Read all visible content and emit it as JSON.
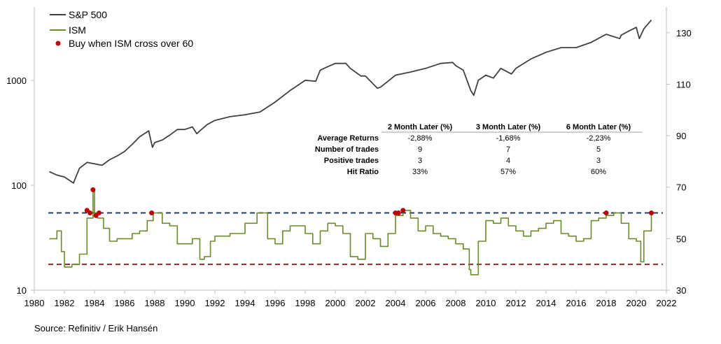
{
  "chart_data": {
    "type": "line",
    "title": "",
    "source": "Source: Refinitiv / Erik Hansén",
    "legend": {
      "placement": "top-left",
      "entries": [
        {
          "label": "S&P 500",
          "color": "#404040"
        },
        {
          "label": "ISM",
          "color": "#6b8b2a"
        },
        {
          "label": "Buy when ISM cross over 60",
          "color": "#c00000"
        }
      ]
    },
    "x_axis": {
      "range": [
        1980,
        2022
      ],
      "ticks": [
        "1980",
        "1982",
        "1984",
        "1986",
        "1988",
        "1990",
        "1992",
        "1994",
        "1996",
        "1998",
        "2000",
        "2002",
        "2004",
        "2006",
        "2008",
        "2010",
        "2012",
        "2014",
        "2016",
        "2018",
        "2020",
        "2022"
      ]
    },
    "y_left": {
      "scale": "log",
      "range": [
        10,
        5000
      ],
      "ticks": [
        "10",
        "100",
        "1000"
      ]
    },
    "y_right": {
      "scale": "linear",
      "range": [
        30,
        140
      ],
      "ticks": [
        "30",
        "50",
        "70",
        "90",
        "110",
        "130"
      ]
    },
    "reference_lines": [
      {
        "value": 60,
        "axis": "right",
        "color": "#1f3864",
        "style": "dashed"
      },
      {
        "value": 40,
        "axis": "right",
        "color": "#8b2a2a",
        "style": "dashed"
      }
    ],
    "series": [
      {
        "name": "S&P 500",
        "axis": "left",
        "x": [
          1981.0,
          1981.5,
          1982.0,
          1982.6,
          1983.0,
          1983.5,
          1984.0,
          1984.5,
          1985.0,
          1985.5,
          1986.0,
          1986.5,
          1987.0,
          1987.6,
          1987.85,
          1988.0,
          1988.5,
          1989.0,
          1989.5,
          1990.0,
          1990.5,
          1990.8,
          1991.0,
          1991.5,
          1992.0,
          1993.0,
          1994.0,
          1995.0,
          1996.0,
          1997.0,
          1998.0,
          1998.7,
          1999.0,
          1999.5,
          2000.0,
          2000.7,
          2001.0,
          2001.7,
          2002.0,
          2002.8,
          2003.0,
          2003.5,
          2004.0,
          2005.0,
          2006.0,
          2007.0,
          2007.8,
          2008.0,
          2008.5,
          2009.0,
          2009.2,
          2009.5,
          2010.0,
          2010.5,
          2011.0,
          2011.7,
          2012.0,
          2013.0,
          2014.0,
          2015.0,
          2016.0,
          2017.0,
          2018.0,
          2018.9,
          2019.0,
          2019.5,
          2020.0,
          2020.2,
          2020.5,
          2021.0
        ],
        "values": [
          135,
          125,
          120,
          105,
          145,
          165,
          160,
          155,
          175,
          190,
          210,
          245,
          290,
          330,
          230,
          255,
          270,
          300,
          340,
          340,
          360,
          310,
          330,
          380,
          415,
          450,
          470,
          500,
          620,
          800,
          1000,
          980,
          1250,
          1350,
          1450,
          1450,
          1300,
          1100,
          1100,
          840,
          860,
          980,
          1120,
          1200,
          1300,
          1450,
          1480,
          1380,
          1250,
          800,
          720,
          1000,
          1120,
          1050,
          1300,
          1150,
          1300,
          1600,
          1850,
          2050,
          2050,
          2300,
          2750,
          2500,
          2700,
          2950,
          3200,
          2500,
          3100,
          3750
        ]
      },
      {
        "name": "ISM",
        "axis": "right",
        "x": [
          1981.0,
          1981.5,
          1981.8,
          1982.0,
          1982.5,
          1983.0,
          1983.5,
          1983.9,
          1984.0,
          1984.2,
          1984.6,
          1985.0,
          1985.5,
          1986.0,
          1986.5,
          1987.0,
          1987.5,
          1987.9,
          1988.5,
          1989.0,
          1989.5,
          1990.0,
          1990.5,
          1991.0,
          1991.3,
          1991.7,
          1992.0,
          1993.0,
          1994.0,
          1994.8,
          1995.5,
          1996.0,
          1996.5,
          1997.0,
          1997.5,
          1998.0,
          1998.5,
          1999.0,
          1999.5,
          2000.0,
          2000.5,
          2001.0,
          2001.5,
          2002.0,
          2002.5,
          2003.0,
          2003.5,
          2004.0,
          2004.5,
          2005.0,
          2005.5,
          2006.0,
          2006.5,
          2007.0,
          2007.5,
          2008.0,
          2008.5,
          2008.9,
          2009.0,
          2009.5,
          2010.0,
          2010.5,
          2011.0,
          2011.5,
          2012.0,
          2012.5,
          2013.0,
          2013.5,
          2014.0,
          2014.5,
          2015.0,
          2015.5,
          2016.0,
          2016.5,
          2017.0,
          2017.5,
          2018.0,
          2018.5,
          2019.0,
          2019.5,
          2020.0,
          2020.3,
          2020.5,
          2021.0
        ],
        "values": [
          50,
          53,
          45,
          39,
          40,
          44,
          58,
          69,
          60,
          58,
          54,
          49,
          50,
          50,
          52,
          53,
          57,
          60,
          56,
          55,
          48,
          48,
          50,
          42,
          43,
          49,
          51,
          52,
          56,
          60,
          50,
          48,
          53,
          55,
          55,
          52,
          48,
          53,
          56,
          55,
          52,
          43,
          42,
          52,
          50,
          47,
          52,
          59,
          61,
          58,
          53,
          55,
          52,
          51,
          50,
          48,
          46,
          38,
          36,
          49,
          57,
          56,
          58,
          55,
          53,
          51,
          53,
          54,
          56,
          57,
          52,
          51,
          49,
          50,
          57,
          58,
          59,
          60,
          56,
          50,
          49,
          41,
          53,
          60
        ]
      },
      {
        "name": "Buy when ISM cross over 60",
        "type": "scatter",
        "axis": "right",
        "x": [
          1983.5,
          1983.7,
          1983.9,
          1984.1,
          1984.3,
          1987.8,
          2004.0,
          2004.2,
          2004.5,
          2018.0,
          2021.0
        ],
        "values": [
          61,
          60,
          69,
          59,
          60,
          60,
          60,
          60,
          61,
          60,
          60
        ]
      }
    ],
    "table": {
      "columns": [
        "",
        "2 Month Later (%)",
        "3 Month Later (%)",
        "6 Month Later (%)"
      ],
      "rows": [
        [
          "Average Returns",
          "-2,88%",
          "-1,68%",
          "-2,23%"
        ],
        [
          "Number of trades",
          "9",
          "7",
          "5"
        ],
        [
          "Positive trades",
          "3",
          "4",
          "3"
        ],
        [
          "Hit Ratio",
          "33%",
          "57%",
          "60%"
        ]
      ]
    }
  }
}
